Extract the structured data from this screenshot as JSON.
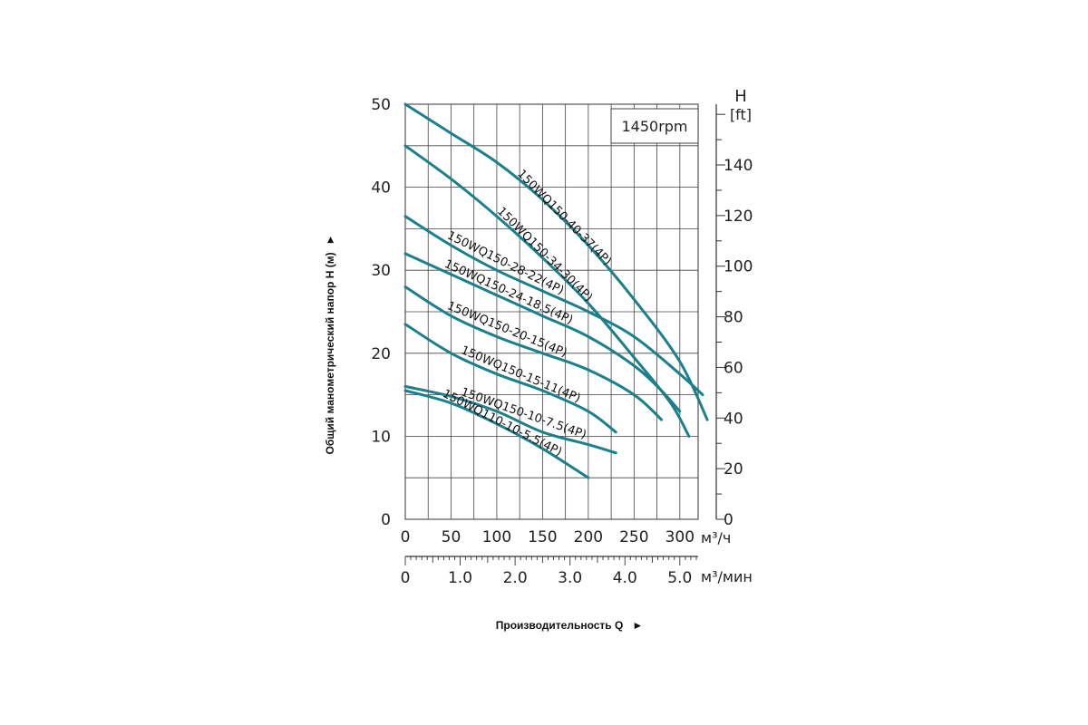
{
  "chart_data": {
    "type": "line",
    "rpm_label": "1450rpm",
    "ylabel": "Общий манометрический напор H (м)",
    "ylabel_arrow": "►",
    "xlabel": "Производительность Q",
    "xlabel_arrow": "►",
    "x_unit": "м³/ч",
    "x2_unit": "м³/мин",
    "y2_title": "H",
    "y2_unit": "[ft]",
    "xlim": [
      0,
      320
    ],
    "ylim": [
      0,
      50
    ],
    "y2lim": [
      0,
      164
    ],
    "x_ticks": [
      "0",
      "50",
      "100",
      "150",
      "200",
      "250",
      "300"
    ],
    "x2_ticks": [
      "0",
      "1.0",
      "2.0",
      "3.0",
      "4.0",
      "5.0"
    ],
    "x2_tick_values": [
      0,
      60,
      120,
      180,
      240,
      300
    ],
    "y_ticks": [
      "0",
      "10",
      "20",
      "30",
      "40",
      "50"
    ],
    "y2_ticks": [
      "0",
      "20",
      "40",
      "60",
      "80",
      "100",
      "120",
      "140"
    ],
    "grid": true,
    "line_color": "#1b7f8c",
    "series": [
      {
        "name": "150WQ150-40-37(4P)",
        "x": [
          0,
          50,
          100,
          150,
          200,
          250,
          300,
          330
        ],
        "y": [
          50,
          46.5,
          43,
          38.5,
          33,
          26.5,
          19,
          12
        ]
      },
      {
        "name": "150WQ150-34-30(4P)",
        "x": [
          0,
          50,
          100,
          150,
          200,
          250,
          290,
          310
        ],
        "y": [
          45,
          41,
          36.5,
          31.5,
          26,
          19.5,
          14,
          10
        ]
      },
      {
        "name": "150WQ150-28-22(4P)",
        "x": [
          0,
          50,
          100,
          150,
          200,
          250,
          300,
          325
        ],
        "y": [
          36.5,
          33,
          30,
          27.5,
          25,
          22,
          17.5,
          15
        ]
      },
      {
        "name": "150WQ150-24-18.5(4P)",
        "x": [
          0,
          50,
          100,
          150,
          200,
          250,
          280,
          300
        ],
        "y": [
          32,
          29.5,
          27,
          24.5,
          22,
          18.5,
          15.5,
          13
        ]
      },
      {
        "name": "150WQ150-20-15(4P)",
        "x": [
          0,
          50,
          100,
          150,
          200,
          250,
          280
        ],
        "y": [
          28,
          24.5,
          22,
          20,
          18,
          15,
          12
        ]
      },
      {
        "name": "150WQ150-15-11(4P)",
        "x": [
          0,
          50,
          100,
          150,
          200,
          230
        ],
        "y": [
          23.5,
          20,
          17.5,
          15.5,
          13,
          10.5
        ]
      },
      {
        "name": "150WQ150-10-7.5(4P)",
        "x": [
          0,
          50,
          100,
          150,
          200,
          230
        ],
        "y": [
          16,
          14.8,
          13,
          10.5,
          9,
          8
        ]
      },
      {
        "name": "150WQ110-10-5.5(4P)",
        "x": [
          0,
          50,
          100,
          150,
          200
        ],
        "y": [
          15.5,
          14,
          11.5,
          8.5,
          5
        ]
      }
    ]
  }
}
